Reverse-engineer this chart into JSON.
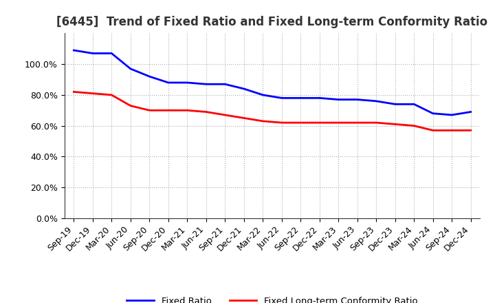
{
  "title": "[6445]  Trend of Fixed Ratio and Fixed Long-term Conformity Ratio",
  "x_labels": [
    "Sep-19",
    "Dec-19",
    "Mar-20",
    "Jun-20",
    "Sep-20",
    "Dec-20",
    "Mar-21",
    "Jun-21",
    "Sep-21",
    "Dec-21",
    "Mar-22",
    "Jun-22",
    "Sep-22",
    "Dec-22",
    "Mar-23",
    "Jun-23",
    "Sep-23",
    "Dec-23",
    "Mar-24",
    "Jun-24",
    "Sep-24",
    "Dec-24"
  ],
  "fixed_ratio": [
    1.09,
    1.07,
    1.07,
    0.97,
    0.92,
    0.88,
    0.88,
    0.87,
    0.87,
    0.84,
    0.8,
    0.78,
    0.78,
    0.78,
    0.77,
    0.77,
    0.76,
    0.74,
    0.74,
    0.68,
    0.67,
    0.69
  ],
  "fixed_lt_ratio": [
    0.82,
    0.81,
    0.8,
    0.73,
    0.7,
    0.7,
    0.7,
    0.69,
    0.67,
    0.65,
    0.63,
    0.62,
    0.62,
    0.62,
    0.62,
    0.62,
    0.62,
    0.61,
    0.6,
    0.57,
    0.57,
    0.57
  ],
  "fixed_ratio_color": "#0000ff",
  "fixed_lt_ratio_color": "#ff0000",
  "ylim": [
    0.0,
    1.2
  ],
  "yticks": [
    0.0,
    0.2,
    0.4,
    0.6,
    0.8,
    1.0
  ],
  "background_color": "#ffffff",
  "plot_bg_color": "#ffffff",
  "grid_color": "#999999",
  "legend_fixed_ratio": "Fixed Ratio",
  "legend_fixed_lt_ratio": "Fixed Long-term Conformity Ratio",
  "line_width": 2.0,
  "title_fontsize": 12,
  "tick_fontsize": 9
}
